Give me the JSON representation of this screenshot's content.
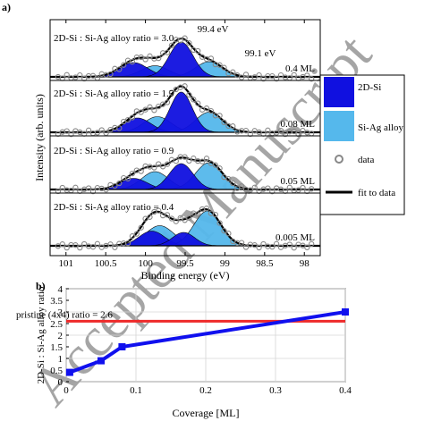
{
  "panels": {
    "a": "a)",
    "b": "b)"
  },
  "colors": {
    "si2d": "#1010e0",
    "siag": "#55b8ec",
    "fit": "#000000",
    "data_marker": "#888888",
    "pristine_line": "#ee2a2a",
    "coverage_series": "#1010ee"
  },
  "annotations": {
    "peak_2d": "99.4 eV",
    "peak_siag": "99.1 eV"
  },
  "legend": {
    "items": [
      {
        "label": "2D-Si",
        "marker": "blue-fill"
      },
      {
        "label": "Si-Ag alloy",
        "marker": "lightblue-fill"
      },
      {
        "label": "data",
        "marker": "open-circle"
      },
      {
        "label": "fit to data",
        "marker": "black-line"
      }
    ]
  },
  "watermark": "Accepted Manuscript",
  "chart_data": [
    {
      "panel": "a",
      "type": "area",
      "title": "",
      "xlabel": "Binding energy (eV)",
      "ylabel": "Intensity (arb. units)",
      "xlim": [
        101.2,
        97.8
      ],
      "x_reversed": true,
      "xticks": [
        "101",
        "100.5",
        "100",
        "99.5",
        "99",
        "98.5",
        "98"
      ],
      "spectra": [
        {
          "ratio_label": "2D-Si : Si-Ag alloy ratio =  3.0",
          "coverage": "0.4 ML",
          "components_2d": [
            {
              "center": 100.15,
              "amp": 0.32,
              "width": 0.18
            },
            {
              "center": 99.55,
              "amp": 0.78,
              "width": 0.15
            }
          ],
          "components_siag": [
            {
              "center": 99.88,
              "amp": 0.25,
              "width": 0.17
            },
            {
              "center": 99.2,
              "amp": 0.34,
              "width": 0.17
            }
          ]
        },
        {
          "ratio_label": "2D-Si : Si-Ag alloy ratio =  1.5",
          "coverage": "0.08 ML",
          "components_2d": [
            {
              "center": 100.1,
              "amp": 0.32,
              "width": 0.17
            },
            {
              "center": 99.55,
              "amp": 0.9,
              "width": 0.14
            }
          ],
          "components_siag": [
            {
              "center": 99.85,
              "amp": 0.35,
              "width": 0.17
            },
            {
              "center": 99.2,
              "amp": 0.45,
              "width": 0.17
            }
          ]
        },
        {
          "ratio_label": "2D-Si : Si-Ag alloy ratio = 0.9",
          "coverage": "0.05 ML",
          "components_2d": [
            {
              "center": 100.15,
              "amp": 0.25,
              "width": 0.17
            },
            {
              "center": 99.55,
              "amp": 0.58,
              "width": 0.15
            }
          ],
          "components_siag": [
            {
              "center": 99.88,
              "amp": 0.4,
              "width": 0.17
            },
            {
              "center": 99.2,
              "amp": 0.6,
              "width": 0.17
            }
          ]
        },
        {
          "ratio_label": "2D-Si : Si-Ag alloy ratio =  0.4",
          "coverage": "0.005 ML",
          "components_2d": [
            {
              "center": 99.92,
              "amp": 0.33,
              "width": 0.16
            },
            {
              "center": 99.52,
              "amp": 0.3,
              "width": 0.14
            }
          ],
          "components_siag": [
            {
              "center": 99.82,
              "amp": 0.45,
              "width": 0.18
            },
            {
              "center": 99.22,
              "amp": 0.78,
              "width": 0.17
            }
          ]
        }
      ]
    },
    {
      "panel": "b",
      "type": "line",
      "title": "",
      "xlabel": "Coverage [ML]",
      "ylabel": "2D-Si : Si-Ag alloy ratio",
      "xlim": [
        0,
        0.4
      ],
      "ylim": [
        0,
        4
      ],
      "xticks": [
        "0",
        "0.1",
        "0.2",
        "0.3",
        "0.4"
      ],
      "yticks": [
        "0",
        "0.5",
        "1",
        "1.5",
        "2",
        "2.5",
        "3",
        "3.5",
        "4"
      ],
      "series": [
        {
          "x": [
            0.005,
            0.05,
            0.08,
            0.4
          ],
          "y": [
            0.4,
            0.9,
            1.5,
            3.0
          ]
        }
      ],
      "reference_line": {
        "y": 2.6,
        "label": "pristine (4x4) ratio = 2.6"
      }
    }
  ]
}
